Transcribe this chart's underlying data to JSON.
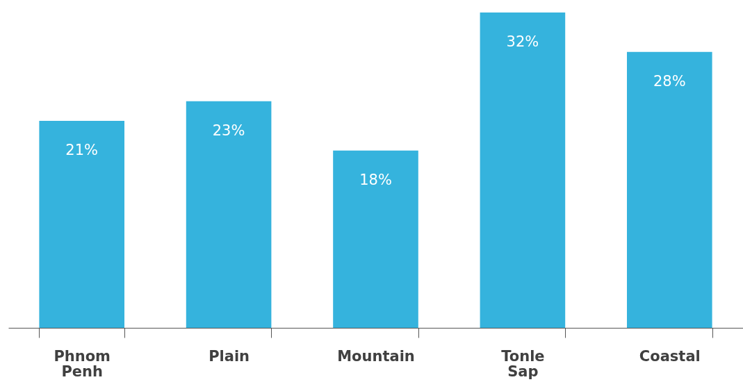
{
  "chart_data": {
    "type": "bar",
    "categories": [
      "Phnom Penh",
      "Plain",
      "Mountain",
      "Tonle Sap",
      "Coastal"
    ],
    "values": [
      21,
      23,
      18,
      32,
      28
    ],
    "value_labels": [
      "21%",
      "23%",
      "18%",
      "32%",
      "28%"
    ],
    "color": "#35b3dd"
  }
}
